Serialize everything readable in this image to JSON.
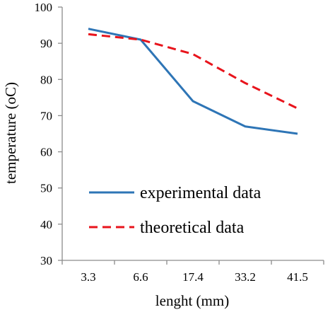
{
  "chart_data": {
    "type": "line",
    "categories": [
      "3.3",
      "6.6",
      "17.4",
      "33.2",
      "41.5"
    ],
    "series": [
      {
        "name": "experimental data",
        "values": [
          94,
          91,
          74,
          67,
          65
        ],
        "color": "#2e75b6",
        "dash": "solid"
      },
      {
        "name": "theoretical data",
        "values": [
          92.5,
          91,
          87,
          79,
          72
        ],
        "color": "#e8141c",
        "dash": "dashed"
      }
    ],
    "xlabel": "lenght (mm)",
    "ylabel": "temperature (oC)",
    "ylim": [
      30,
      100
    ],
    "yticks": [
      30,
      40,
      50,
      60,
      70,
      80,
      90,
      100
    ],
    "grid": false,
    "legend_position": "lower-center"
  }
}
